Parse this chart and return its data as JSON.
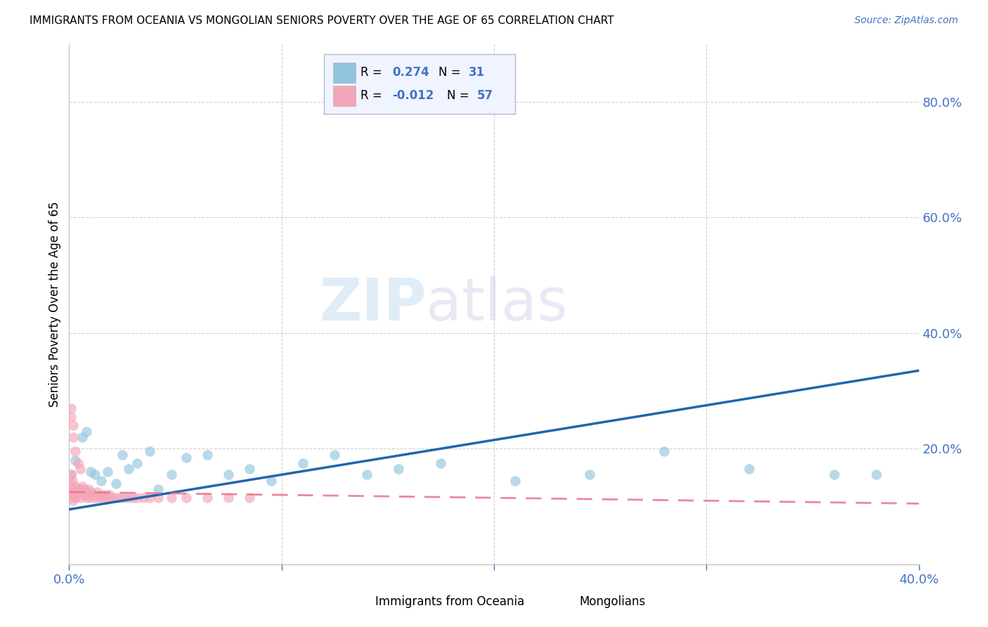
{
  "title": "IMMIGRANTS FROM OCEANIA VS MONGOLIAN SENIORS POVERTY OVER THE AGE OF 65 CORRELATION CHART",
  "source": "Source: ZipAtlas.com",
  "ylabel": "Seniors Poverty Over the Age of 65",
  "xlim": [
    0.0,
    0.4
  ],
  "ylim": [
    0.0,
    0.9
  ],
  "xticks": [
    0.0,
    0.1,
    0.2,
    0.3,
    0.4
  ],
  "yticks_right": [
    0.0,
    0.2,
    0.4,
    0.6,
    0.8
  ],
  "grid_color": "#d0d0d0",
  "background_color": "#ffffff",
  "blue_color": "#92c5de",
  "pink_color": "#f4a6b8",
  "blue_line_color": "#2166ac",
  "pink_line_color": "#e8748a",
  "legend_box_color": "#f0f4ff",
  "legend_box_edge": "#b0b8cc",
  "blue_line_start_y": 0.095,
  "blue_line_end_y": 0.335,
  "pink_line_start_y": 0.125,
  "pink_line_end_y": 0.105,
  "oceania_x": [
    0.001,
    0.003,
    0.006,
    0.008,
    0.01,
    0.012,
    0.015,
    0.018,
    0.022,
    0.025,
    0.028,
    0.032,
    0.038,
    0.042,
    0.048,
    0.055,
    0.065,
    0.075,
    0.085,
    0.095,
    0.11,
    0.125,
    0.14,
    0.155,
    0.175,
    0.21,
    0.245,
    0.28,
    0.32,
    0.36,
    0.38
  ],
  "oceania_y": [
    0.155,
    0.18,
    0.22,
    0.23,
    0.16,
    0.155,
    0.145,
    0.16,
    0.14,
    0.19,
    0.165,
    0.175,
    0.195,
    0.13,
    0.155,
    0.185,
    0.19,
    0.155,
    0.165,
    0.145,
    0.175,
    0.19,
    0.155,
    0.165,
    0.175,
    0.145,
    0.155,
    0.195,
    0.165,
    0.155,
    0.155
  ],
  "mongolian_x": [
    0.0003,
    0.0005,
    0.0007,
    0.001,
    0.0012,
    0.0015,
    0.002,
    0.002,
    0.0025,
    0.003,
    0.003,
    0.0035,
    0.004,
    0.004,
    0.005,
    0.005,
    0.006,
    0.006,
    0.007,
    0.007,
    0.008,
    0.008,
    0.009,
    0.009,
    0.01,
    0.01,
    0.011,
    0.012,
    0.013,
    0.014,
    0.015,
    0.016,
    0.017,
    0.018,
    0.019,
    0.02,
    0.022,
    0.024,
    0.026,
    0.028,
    0.03,
    0.032,
    0.035,
    0.038,
    0.042,
    0.048,
    0.055,
    0.065,
    0.075,
    0.085,
    0.001,
    0.002,
    0.003,
    0.004,
    0.005,
    0.001,
    0.002
  ],
  "mongolian_y": [
    0.125,
    0.14,
    0.155,
    0.115,
    0.13,
    0.145,
    0.11,
    0.12,
    0.125,
    0.115,
    0.135,
    0.12,
    0.13,
    0.125,
    0.115,
    0.13,
    0.125,
    0.135,
    0.12,
    0.13,
    0.125,
    0.115,
    0.12,
    0.13,
    0.115,
    0.125,
    0.12,
    0.115,
    0.125,
    0.115,
    0.12,
    0.115,
    0.12,
    0.115,
    0.12,
    0.115,
    0.115,
    0.115,
    0.115,
    0.115,
    0.115,
    0.115,
    0.115,
    0.115,
    0.115,
    0.115,
    0.115,
    0.115,
    0.115,
    0.115,
    0.255,
    0.22,
    0.195,
    0.175,
    0.165,
    0.27,
    0.24
  ]
}
